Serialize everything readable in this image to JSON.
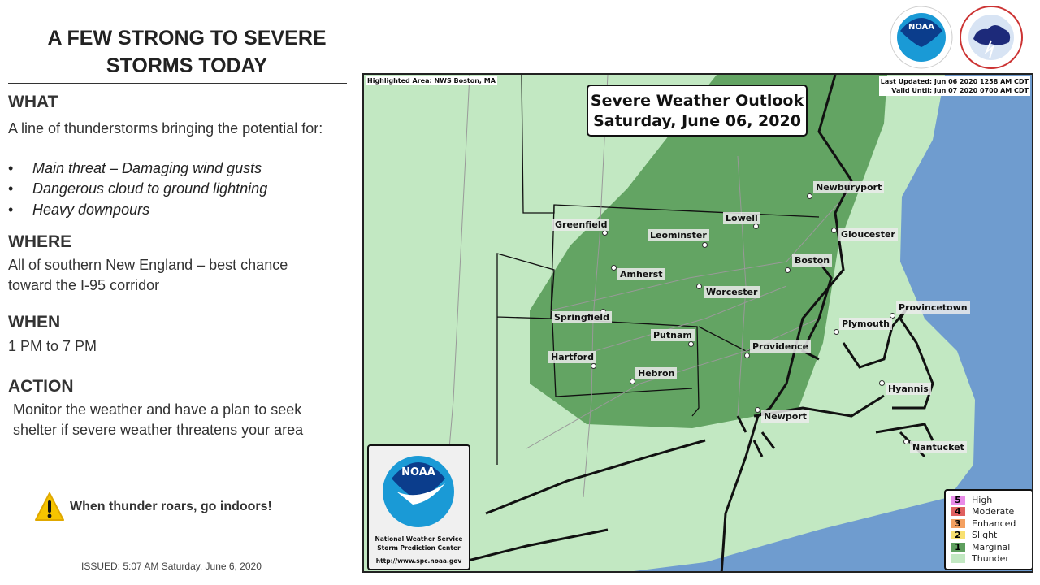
{
  "left": {
    "title_line1": "A FEW STRONG TO SEVERE",
    "title_line2": "STORMS TODAY",
    "what_heading": "WHAT",
    "what_text": "A line of thunderstorms bringing the potential for:",
    "bullets": [
      "Main threat – Damaging wind gusts",
      "Dangerous cloud to ground lightning",
      "Heavy downpours"
    ],
    "bullet_symbol": "•",
    "where_heading": "WHERE",
    "where_text": "All of southern New England – best chance toward the I-95 corridor",
    "when_heading": "WHEN",
    "when_text": "1 PM to 7 PM",
    "action_heading": "ACTION",
    "action_text": "Monitor the weather and have a plan to seek shelter if severe weather threatens your area",
    "warning": "When thunder roars, go indoors!",
    "issued": "ISSUED:  5:07 AM Saturday, June 6, 2020"
  },
  "logos": {
    "noaa": "NOAA",
    "nws": "NATIONAL WEATHER SERVICE"
  },
  "map": {
    "highlighted": "Highlighted Area: NWS Boston, MA",
    "last_updated": "Last Updated: Jun 06 2020 1258 AM CDT",
    "valid_until": "Valid Until: Jun 07 2020 0700 AM CDT",
    "title_line1": "Severe Weather Outlook",
    "title_line2": "Saturday, June 06, 2020",
    "cities": [
      "Greenfield",
      "Leominster",
      "Lowell",
      "Newburyport",
      "Gloucester",
      "Amherst",
      "Boston",
      "Worcester",
      "Springfield",
      "Provincetown",
      "Plymouth",
      "Putnam",
      "Providence",
      "Hartford",
      "Hebron",
      "Hyannis",
      "Newport",
      "Nantucket"
    ],
    "spc": {
      "logo": "NOAA",
      "line1": "National Weather Service",
      "line2": "Storm Prediction Center",
      "url": "http://www.spc.noaa.gov"
    },
    "legend": [
      {
        "num": "5",
        "label": "High",
        "color": "#e88be8"
      },
      {
        "num": "4",
        "label": "Moderate",
        "color": "#e06060"
      },
      {
        "num": "3",
        "label": "Enhanced",
        "color": "#f4a060"
      },
      {
        "num": "2",
        "label": "Slight",
        "color": "#f8e070"
      },
      {
        "num": "1",
        "label": "Marginal",
        "color": "#5f9f5f"
      },
      {
        "num": "",
        "label": "Thunder",
        "color": "#c2e8c2"
      }
    ],
    "colors": {
      "thunder": "#c2e8c2",
      "marginal": "#63a463",
      "ocean": "#6f9ccf"
    }
  }
}
